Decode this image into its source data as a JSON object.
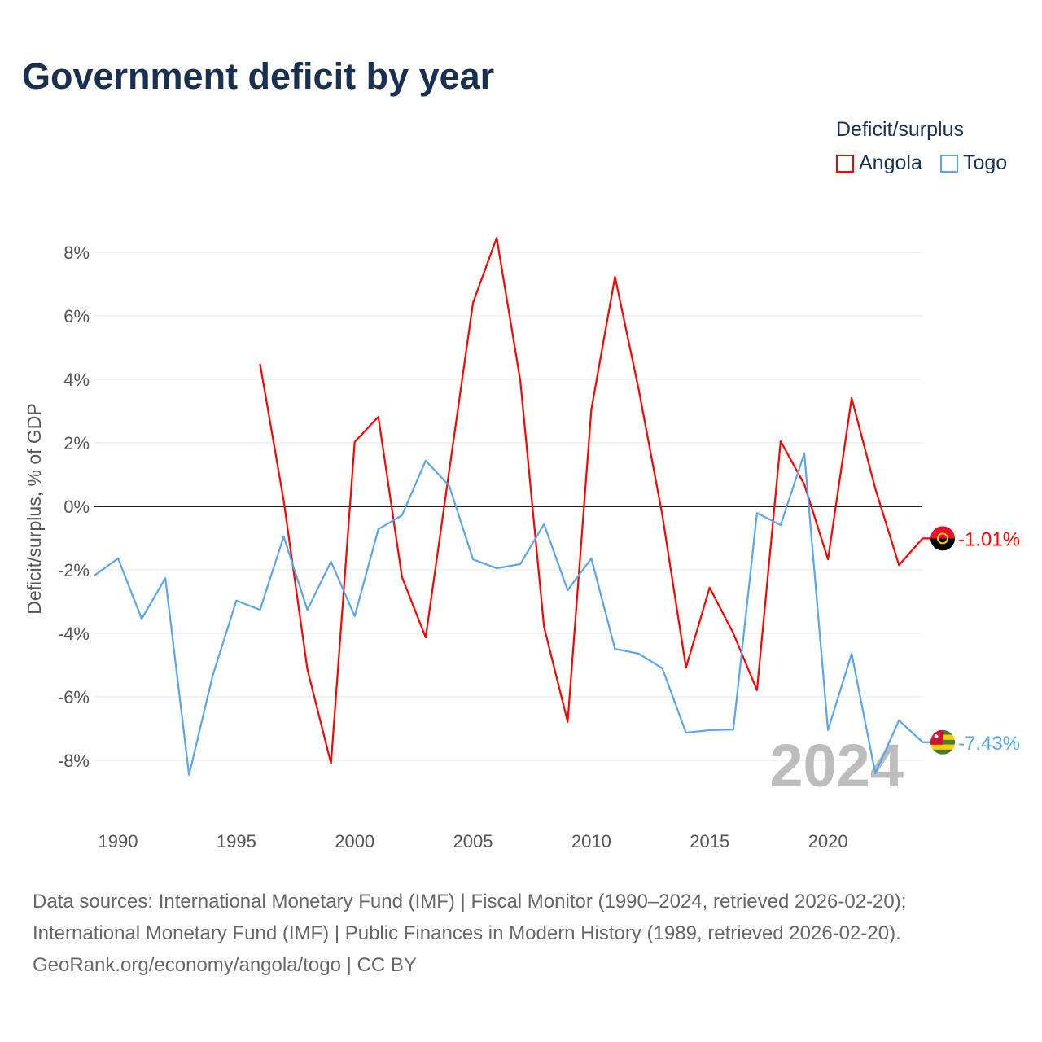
{
  "title": "Government deficit by year",
  "legend": {
    "title": "Deficit/surplus",
    "items": [
      {
        "label": "Angola",
        "color": "#ff0000"
      },
      {
        "label": "Togo",
        "color": "#5aa5ee"
      }
    ]
  },
  "chart_data": {
    "type": "line",
    "title": "Government deficit by year",
    "ylabel": "Deficit/surplus, % of GDP",
    "xlim": [
      1989,
      2024
    ],
    "ylim": [
      -9.5,
      8.5
    ],
    "x_ticks": [
      1990,
      1995,
      2000,
      2005,
      2010,
      2015,
      2020
    ],
    "y_ticks": [
      8,
      6,
      4,
      2,
      0,
      -2,
      -4,
      -6,
      -8
    ],
    "y_tick_labels": [
      "8%",
      "6%",
      "4%",
      "2%",
      "0%",
      "-2%",
      "-4%",
      "-6%",
      "-8%"
    ],
    "year_watermark": "2024",
    "series": [
      {
        "name": "Angola",
        "color": "#ff0000",
        "end_label": "-1.01%",
        "x": [
          1996,
          1997,
          1998,
          1999,
          2000,
          2001,
          2002,
          2003,
          2004,
          2005,
          2006,
          2007,
          2008,
          2009,
          2010,
          2011,
          2012,
          2013,
          2014,
          2015,
          2016,
          2017,
          2018,
          2019,
          2020,
          2021,
          2022,
          2023,
          2024
        ],
        "y": [
          4.49,
          0.18,
          -5.13,
          -8.1,
          2.03,
          2.82,
          -2.23,
          -4.13,
          1.15,
          6.41,
          8.46,
          3.95,
          -3.79,
          -6.79,
          3.05,
          7.23,
          3.69,
          -0.28,
          -5.08,
          -2.56,
          -4.0,
          -5.79,
          2.05,
          0.69,
          -1.67,
          3.41,
          0.56,
          -1.85,
          -1.01
        ]
      },
      {
        "name": "Togo",
        "color": "#5aa5ee",
        "end_label": "-7.43%",
        "x": [
          1989,
          1990,
          1991,
          1992,
          1993,
          1994,
          1995,
          1996,
          1997,
          1998,
          1999,
          2000,
          2001,
          2002,
          2003,
          2004,
          2005,
          2006,
          2007,
          2008,
          2009,
          2010,
          2011,
          2012,
          2013,
          2014,
          2015,
          2016,
          2017,
          2018,
          2019,
          2020,
          2021,
          2022,
          2023,
          2024
        ],
        "y": [
          -2.18,
          -1.64,
          -3.54,
          -2.26,
          -8.46,
          -5.33,
          -2.97,
          -3.26,
          -0.95,
          -3.26,
          -1.74,
          -3.46,
          -0.72,
          -0.28,
          1.44,
          0.64,
          -1.67,
          -1.95,
          -1.82,
          -0.56,
          -2.64,
          -1.64,
          -4.49,
          -4.64,
          -5.1,
          -7.13,
          -7.05,
          -7.03,
          -0.21,
          -0.59,
          1.67,
          -7.05,
          -4.64,
          -8.41,
          -6.74,
          -7.43
        ]
      }
    ]
  },
  "footer": {
    "line1": "Data sources: International Monetary Fund (IMF) | Fiscal Monitor (1990–2024, retrieved 2026-02-20);",
    "line2": "International Monetary Fund (IMF) | Public Finances in Modern History (1989, retrieved 2026-02-20).",
    "line3": "GeoRank.org/economy/angola/togo | CC BY"
  }
}
